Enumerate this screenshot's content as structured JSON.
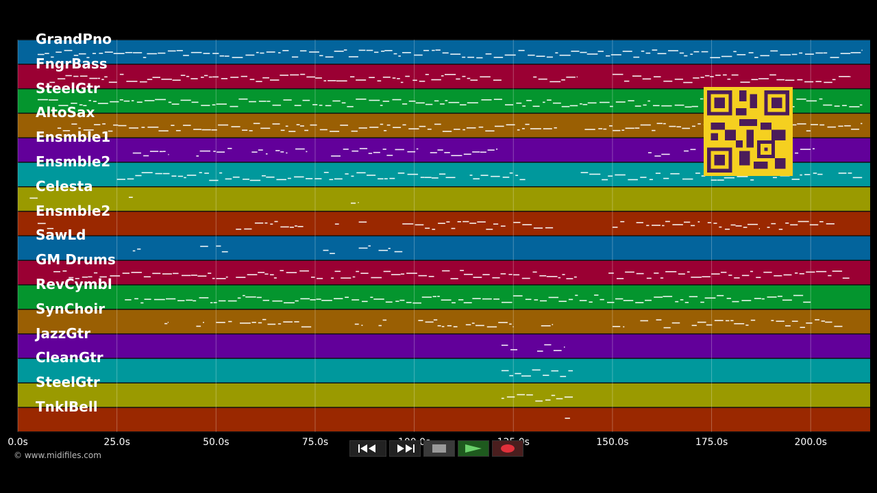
{
  "tracks": [
    {
      "name": "GrandPno",
      "color": "#03649c"
    },
    {
      "name": "FngrBass",
      "color": "#9a0033"
    },
    {
      "name": "SteelGtr",
      "color": "#04952e"
    },
    {
      "name": "AltoSax",
      "color": "#9a5f03"
    },
    {
      "name": "Ensmble1",
      "color": "#62009a"
    },
    {
      "name": "Ensmble2",
      "color": "#00989c"
    },
    {
      "name": "Celesta",
      "color": "#9a9a00"
    },
    {
      "name": "Ensmble2",
      "color": "#9a2800"
    },
    {
      "name": "SawLd",
      "color": "#03649c"
    },
    {
      "name": "GM Drums",
      "color": "#9a0033"
    },
    {
      "name": "RevCymbl",
      "color": "#04952e"
    },
    {
      "name": "SynChoir",
      "color": "#9a5f03"
    },
    {
      "name": "JazzGtr",
      "color": "#62009a"
    },
    {
      "name": "CleanGtr",
      "color": "#00989c"
    },
    {
      "name": "SteelGtr",
      "color": "#9a9a00"
    },
    {
      "name": "TnklBell",
      "color": "#9a2800"
    }
  ],
  "time_axis": {
    "max_seconds": 215,
    "ticks": [
      {
        "t": 0,
        "label": "0.0s"
      },
      {
        "t": 25,
        "label": "25.0s"
      },
      {
        "t": 50,
        "label": "50.0s"
      },
      {
        "t": 75,
        "label": "75.0s"
      },
      {
        "t": 100,
        "label": "100.0s"
      },
      {
        "t": 125,
        "label": "125.0s"
      },
      {
        "t": 150,
        "label": "150.0s"
      },
      {
        "t": 175,
        "label": "175.0s"
      },
      {
        "t": 200,
        "label": "200.0s"
      }
    ]
  },
  "notes": [
    [
      [
        5,
        213
      ]
    ],
    [
      [
        8,
        122
      ],
      [
        130,
        141
      ],
      [
        150,
        210
      ]
    ],
    [
      [
        5,
        213
      ]
    ],
    [
      [
        10,
        136
      ],
      [
        143,
        213
      ]
    ],
    [
      [
        29,
        38
      ],
      [
        45,
        54
      ],
      [
        59,
        63
      ],
      [
        65,
        68
      ],
      [
        70,
        73
      ],
      [
        79,
        101
      ],
      [
        104,
        121
      ],
      [
        159,
        165
      ],
      [
        168,
        171
      ],
      [
        173,
        176
      ],
      [
        187,
        201
      ]
    ],
    [
      [
        25,
        111
      ],
      [
        114,
        128
      ],
      [
        142,
        203
      ],
      [
        207,
        213
      ]
    ],
    [
      [
        3,
        5
      ],
      [
        28,
        29
      ],
      [
        84,
        86
      ]
    ],
    [
      [
        5,
        9
      ],
      [
        55,
        72
      ],
      [
        80,
        81
      ],
      [
        86,
        88
      ],
      [
        97,
        123
      ],
      [
        125,
        135
      ],
      [
        150,
        153
      ],
      [
        156,
        172
      ],
      [
        174,
        187
      ],
      [
        189,
        206
      ]
    ],
    [
      [
        29,
        31
      ],
      [
        46,
        48
      ],
      [
        50,
        53
      ],
      [
        77,
        80
      ],
      [
        86,
        89
      ],
      [
        91,
        94
      ],
      [
        95,
        97
      ]
    ],
    [
      [
        9,
        53
      ],
      [
        55,
        77
      ],
      [
        79,
        105
      ],
      [
        107,
        141
      ],
      [
        149,
        210
      ]
    ],
    [
      [
        27,
        200
      ]
    ],
    [
      [
        37,
        38
      ],
      [
        45,
        47
      ],
      [
        50,
        54
      ],
      [
        56,
        74
      ],
      [
        85,
        87
      ],
      [
        91,
        93
      ],
      [
        101,
        111
      ],
      [
        113,
        125
      ],
      [
        132,
        135
      ],
      [
        150,
        153
      ],
      [
        157,
        159
      ],
      [
        161,
        167
      ],
      [
        170,
        186
      ],
      [
        190,
        208
      ]
    ],
    [
      [
        122,
        126
      ],
      [
        131,
        138
      ]
    ],
    [
      [
        122,
        140
      ]
    ],
    [
      [
        122,
        140
      ]
    ],
    [
      [
        138,
        140
      ]
    ]
  ],
  "transport": {
    "rewind": "rewind-icon",
    "fast_forward": "fast-forward-icon",
    "stop": "stop-icon",
    "play": "play-icon",
    "record": "record-icon"
  },
  "copyright": "© www.midifiles.com"
}
